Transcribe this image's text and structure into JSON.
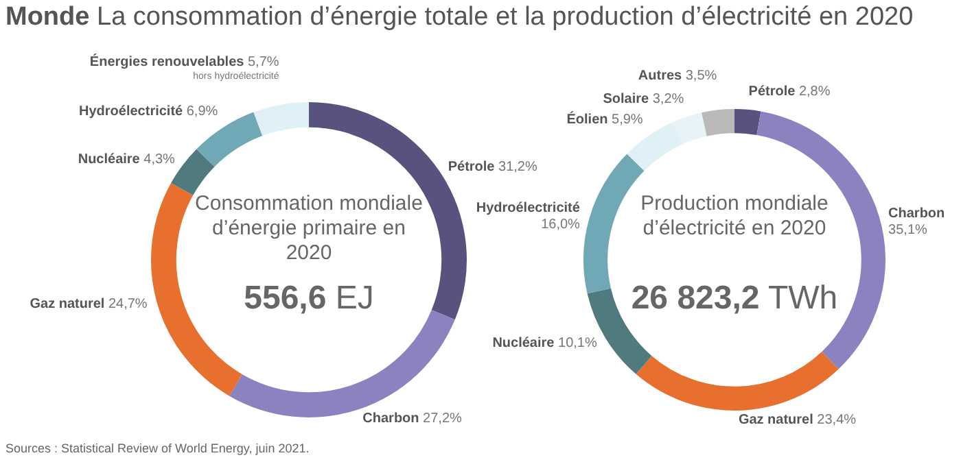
{
  "chart_data": [
    {
      "type": "donut",
      "title": "Monde La consommation d’énergie totale et la production d’électricité en 2020",
      "subtitle": "Consommation mondiale d’énergie primaire en 2020",
      "annotations": [
        "556,6 EJ",
        "Sources : Statistical Review of World Energy, juin 2021."
      ],
      "categories": [
        "Pétrole",
        "Charbon",
        "Gaz naturel",
        "Nucléaire",
        "Hydroélectricité",
        "Énergies renouvelables\nhors hydroélectricité"
      ],
      "values": [
        31.2,
        27.2,
        24.7,
        4.3,
        6.9,
        5.7
      ],
      "value_labels": [
        "31,2%",
        "27,2%",
        "24,7%",
        "4,3%",
        "6,9%",
        "5,7%"
      ],
      "colors": [
        "#58527e",
        "#8a83c0",
        "#e8702f",
        "#4f7b7f",
        "#70a9b5",
        "#dff1f6"
      ],
      "legend": false
    },
    {
      "type": "donut",
      "subtitle": "Production mondiale d’électricité en 2020",
      "annotations": [
        "26 823,2 TWh"
      ],
      "categories": [
        "Pétrole",
        "Charbon",
        "Gaz naturel",
        "Nucléaire",
        "Hydroélectricité\n",
        "Éolien",
        "Solaire",
        "Autres"
      ],
      "values": [
        2.8,
        35.1,
        23.4,
        10.1,
        16.0,
        5.9,
        3.2,
        3.5
      ],
      "value_labels": [
        "2,8%",
        "35,1%",
        "23,4%",
        "10,1%",
        "16,0%",
        "5,9%",
        "3,2%",
        "3,5%"
      ],
      "colors": [
        "#58527e",
        "#8a83c0",
        "#e8702f",
        "#4f7b7f",
        "#70a9b5",
        "#dff1f6",
        "#e6f4f8",
        "#b9b9b9"
      ],
      "legend": false
    }
  ]
}
